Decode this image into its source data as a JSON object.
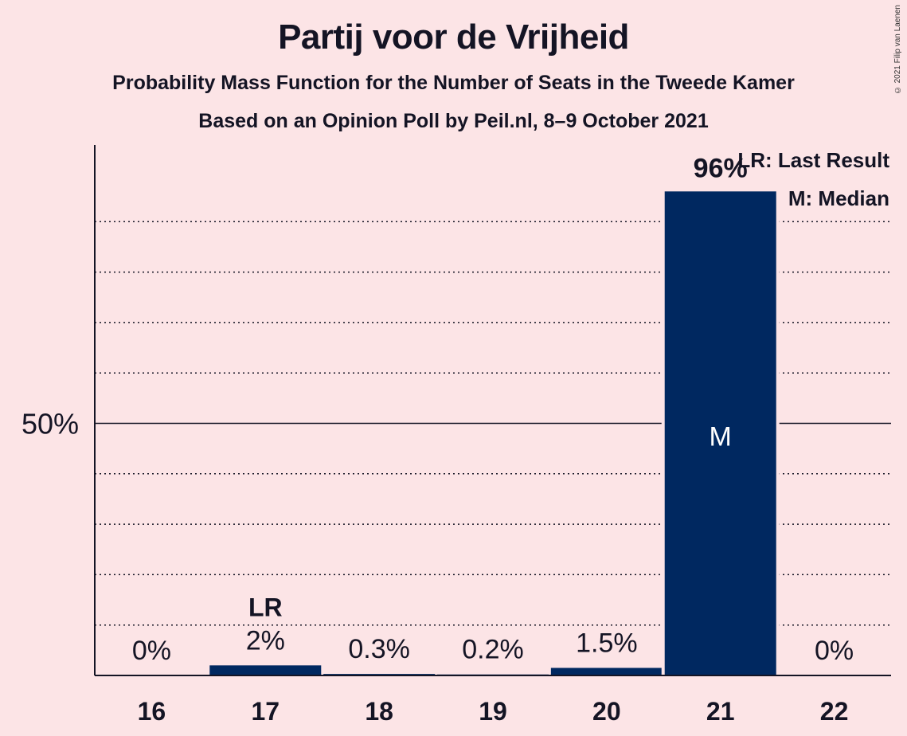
{
  "header": {
    "title": "Partij voor de Vrijheid",
    "subtitle1": "Probability Mass Function for the Number of Seats in the Tweede Kamer",
    "subtitle2": "Based on an Opinion Poll by Peil.nl, 8–9 October 2021",
    "copyright": "© 2021 Filip van Laenen"
  },
  "legend": {
    "lr": "LR: Last Result",
    "m": "M: Median"
  },
  "colors": {
    "background": "#FCE4E6",
    "bar": "#002860",
    "text": "#141424"
  },
  "chart_data": {
    "type": "bar",
    "categories": [
      "16",
      "17",
      "18",
      "19",
      "20",
      "21",
      "22"
    ],
    "values": [
      0,
      2,
      0.3,
      0.2,
      1.5,
      96,
      0
    ],
    "value_labels": [
      "0%",
      "2%",
      "0.3%",
      "0.2%",
      "1.5%",
      "96%",
      "0%"
    ],
    "ylim": [
      0,
      100
    ],
    "ytick_label": "50%",
    "ytick_value": 50,
    "gridlines": [
      10,
      20,
      30,
      40,
      60,
      70,
      80,
      90
    ],
    "last_result_seat": "17",
    "last_result_label": "LR",
    "median_seat": "21",
    "median_label": "M"
  }
}
